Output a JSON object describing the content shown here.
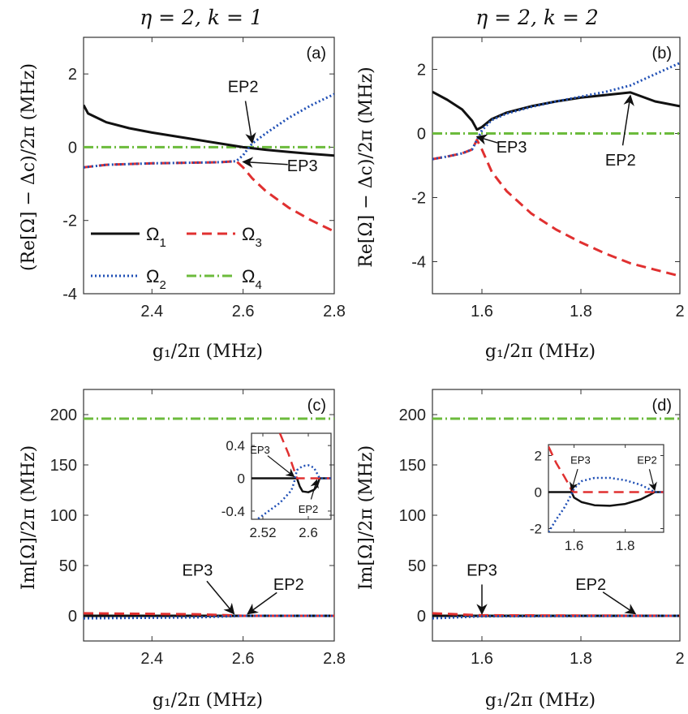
{
  "colors": {
    "omega1": "#111111",
    "omega2": "#1f4fb5",
    "omega3": "#e03030",
    "omega4": "#6cbb3c"
  },
  "legend": {
    "o1": "Ω",
    "o1s": "1",
    "o2": "Ω",
    "o2s": "2",
    "o3": "Ω",
    "o3s": "3",
    "o4": "Ω",
    "o4s": "4"
  },
  "chart_data": [
    {
      "id": "a",
      "type": "line",
      "panel_label": "(a)",
      "title": "η = 2, k = 1",
      "xlabel": "g₁/2π (MHz)",
      "ylabel": "(Re[Ω] − Δc)/2π (MHz)",
      "xlim": [
        2.25,
        2.8
      ],
      "ylim": [
        -4,
        3
      ],
      "xticks": [
        2.4,
        2.6,
        2.8
      ],
      "xticklabels": [
        "2.4",
        "2.6",
        "2.8"
      ],
      "yticks": [
        -4,
        -2,
        0,
        2
      ],
      "yticklabels": [
        "-4",
        "-2",
        "0",
        "2"
      ],
      "series": [
        {
          "name": "Ω1",
          "color_key": "omega1",
          "x": [
            2.25,
            2.26,
            2.3,
            2.35,
            2.4,
            2.45,
            2.5,
            2.55,
            2.6,
            2.65,
            2.7,
            2.75,
            2.8
          ],
          "y": [
            1.15,
            0.92,
            0.68,
            0.52,
            0.4,
            0.3,
            0.2,
            0.1,
            0.0,
            -0.07,
            -0.13,
            -0.18,
            -0.23
          ]
        },
        {
          "name": "Ω2",
          "color_key": "omega2",
          "x": [
            2.25,
            2.3,
            2.4,
            2.5,
            2.55,
            2.585,
            2.6,
            2.61,
            2.62,
            2.65,
            2.7,
            2.75,
            2.8
          ],
          "y": [
            -0.55,
            -0.48,
            -0.44,
            -0.42,
            -0.41,
            -0.38,
            -0.22,
            -0.05,
            0.1,
            0.38,
            0.8,
            1.15,
            1.45
          ]
        },
        {
          "name": "Ω3",
          "color_key": "omega3",
          "x": [
            2.25,
            2.3,
            2.4,
            2.5,
            2.55,
            2.585,
            2.6,
            2.62,
            2.65,
            2.7,
            2.75,
            2.8
          ],
          "y": [
            -0.55,
            -0.48,
            -0.44,
            -0.42,
            -0.41,
            -0.38,
            -0.55,
            -0.85,
            -1.2,
            -1.65,
            -2.0,
            -2.3
          ]
        },
        {
          "name": "Ω4",
          "color_key": "omega4",
          "x": [
            2.25,
            2.8
          ],
          "y": [
            0.0,
            0.0
          ]
        }
      ],
      "annotations": [
        {
          "text": "EP2",
          "tx": 2.6,
          "ty": 1.5,
          "ax": 2.62,
          "ay": 0.12
        },
        {
          "text": "EP3",
          "tx": 2.73,
          "ty": -0.65,
          "ax": 2.6,
          "ay": -0.4
        }
      ]
    },
    {
      "id": "b",
      "type": "line",
      "panel_label": "(b)",
      "title": "η = 2, k = 2",
      "xlabel": "g₁/2π (MHz)",
      "ylabel": "Re[Ω] − Δc)/2π (MHz)",
      "xlim": [
        1.5,
        2.0
      ],
      "ylim": [
        -5,
        3
      ],
      "xticks": [
        1.6,
        1.8,
        2.0
      ],
      "xticklabels": [
        "1.6",
        "1.8",
        "2"
      ],
      "yticks": [
        -4,
        -2,
        0,
        2
      ],
      "yticklabels": [
        "-4",
        "-2",
        "0",
        "2"
      ],
      "series": [
        {
          "name": "Ω1",
          "color_key": "omega1",
          "x": [
            1.5,
            1.53,
            1.56,
            1.58,
            1.59,
            1.6,
            1.62,
            1.65,
            1.7,
            1.75,
            1.8,
            1.85,
            1.9,
            1.95,
            2.0
          ],
          "y": [
            1.3,
            1.05,
            0.75,
            0.4,
            0.12,
            0.2,
            0.45,
            0.65,
            0.85,
            1.0,
            1.12,
            1.2,
            1.28,
            1.0,
            0.85
          ]
        },
        {
          "name": "Ω2",
          "color_key": "omega2",
          "x": [
            1.5,
            1.53,
            1.56,
            1.58,
            1.59,
            1.6,
            1.62,
            1.65,
            1.7,
            1.75,
            1.8,
            1.85,
            1.9,
            1.95,
            2.0
          ],
          "y": [
            -0.8,
            -0.72,
            -0.62,
            -0.5,
            -0.2,
            0.1,
            0.42,
            0.62,
            0.83,
            1.0,
            1.15,
            1.3,
            1.5,
            1.85,
            2.2
          ]
        },
        {
          "name": "Ω3",
          "color_key": "omega3",
          "x": [
            1.5,
            1.53,
            1.56,
            1.58,
            1.59,
            1.6,
            1.62,
            1.65,
            1.7,
            1.75,
            1.8,
            1.85,
            1.9,
            1.95,
            2.0
          ],
          "y": [
            -0.8,
            -0.72,
            -0.62,
            -0.5,
            -0.2,
            -0.5,
            -1.2,
            -1.8,
            -2.5,
            -3.0,
            -3.4,
            -3.75,
            -4.05,
            -4.25,
            -4.45
          ]
        },
        {
          "name": "Ω4",
          "color_key": "omega4",
          "x": [
            1.5,
            2.0
          ],
          "y": [
            0.0,
            0.0
          ]
        }
      ],
      "annotations": [
        {
          "text": "EP3",
          "tx": 1.66,
          "ty": -0.6,
          "ax": 1.59,
          "ay": -0.1
        },
        {
          "text": "EP2",
          "tx": 1.88,
          "ty": -1.0,
          "ax": 1.9,
          "ay": 1.18
        }
      ]
    },
    {
      "id": "c",
      "type": "line",
      "panel_label": "(c)",
      "xlabel": "g₁/2π (MHz)",
      "ylabel": "Im[Ω]/2π (MHz)",
      "xlim": [
        2.25,
        2.8
      ],
      "ylim": [
        -25,
        225
      ],
      "xticks": [
        2.4,
        2.6,
        2.8
      ],
      "xticklabels": [
        "2.4",
        "2.6",
        "2.8"
      ],
      "yticks": [
        0,
        50,
        100,
        150,
        200
      ],
      "yticklabels": [
        "0",
        "50",
        "100",
        "150",
        "200"
      ],
      "series": [
        {
          "name": "Ω1",
          "color_key": "omega1",
          "x": [
            2.25,
            2.8
          ],
          "y": [
            0.0,
            0.0
          ]
        },
        {
          "name": "Ω2",
          "color_key": "omega2",
          "x": [
            2.25,
            2.5,
            2.6,
            2.8
          ],
          "y": [
            -2.5,
            -1.5,
            0.0,
            0.0
          ]
        },
        {
          "name": "Ω3",
          "color_key": "omega3",
          "x": [
            2.25,
            2.5,
            2.6,
            2.8
          ],
          "y": [
            2.5,
            1.5,
            0.0,
            0.0
          ]
        },
        {
          "name": "Ω4",
          "color_key": "omega4",
          "x": [
            2.25,
            2.8
          ],
          "y": [
            196,
            196
          ]
        }
      ],
      "annotations": [
        {
          "text": "EP3",
          "tx": 2.5,
          "ty": 40,
          "ax": 2.58,
          "ay": 2
        },
        {
          "text": "EP2",
          "tx": 2.7,
          "ty": 26,
          "ax": 2.61,
          "ay": 2
        }
      ],
      "inset": {
        "xlim": [
          2.5,
          2.64
        ],
        "ylim": [
          -0.5,
          0.55
        ],
        "xticks": [
          2.52,
          2.6
        ],
        "xticklabels": [
          "2.52",
          "2.6"
        ],
        "yticks": [
          -0.4,
          0,
          0.4
        ],
        "yticklabels": [
          "-0.4",
          "0",
          "0.4"
        ],
        "series": [
          {
            "name": "Ω1",
            "color_key": "omega1",
            "x": [
              2.5,
              2.58,
              2.585,
              2.59,
              2.6,
              2.61,
              2.615,
              2.62,
              2.64
            ],
            "y": [
              0.0,
              0.0,
              -0.1,
              -0.16,
              -0.17,
              -0.14,
              -0.1,
              0.0,
              0.0
            ]
          },
          {
            "name": "Ω2",
            "color_key": "omega2",
            "x": [
              2.5,
              2.52,
              2.55,
              2.57,
              2.575,
              2.58,
              2.59,
              2.6,
              2.61,
              2.62,
              2.64
            ],
            "y": [
              -0.55,
              -0.45,
              -0.3,
              -0.15,
              -0.05,
              0.1,
              0.15,
              0.16,
              0.13,
              0.0,
              0.0
            ]
          },
          {
            "name": "Ω3",
            "color_key": "omega3",
            "x": [
              2.55,
              2.565,
              2.575,
              2.58,
              2.6,
              2.64
            ],
            "y": [
              0.55,
              0.3,
              0.1,
              0.0,
              0.0,
              0.0
            ]
          }
        ],
        "annotations": [
          {
            "text": "EP3",
            "tx": 2.515,
            "ty": 0.3,
            "ax": 2.575,
            "ay": 0.02
          },
          {
            "text": "EP2",
            "tx": 2.6,
            "ty": -0.42,
            "ax": 2.615,
            "ay": -0.02
          }
        ]
      }
    },
    {
      "id": "d",
      "type": "line",
      "panel_label": "(d)",
      "xlabel": "g₁/2π (MHz)",
      "ylabel": "Im[Ω]/2π (MHz)",
      "xlim": [
        1.5,
        2.0
      ],
      "ylim": [
        -25,
        225
      ],
      "xticks": [
        1.6,
        1.8,
        2.0
      ],
      "xticklabels": [
        "1.6",
        "1.8",
        "2"
      ],
      "yticks": [
        0,
        50,
        100,
        150,
        200
      ],
      "yticklabels": [
        "0",
        "50",
        "100",
        "150",
        "200"
      ],
      "series": [
        {
          "name": "Ω1",
          "color_key": "omega1",
          "x": [
            1.5,
            2.0
          ],
          "y": [
            0.0,
            0.0
          ]
        },
        {
          "name": "Ω2",
          "color_key": "omega2",
          "x": [
            1.5,
            1.6,
            2.0
          ],
          "y": [
            -2.5,
            -0.5,
            0.0
          ]
        },
        {
          "name": "Ω3",
          "color_key": "omega3",
          "x": [
            1.5,
            1.6,
            2.0
          ],
          "y": [
            2.5,
            0.5,
            0.0
          ]
        },
        {
          "name": "Ω4",
          "color_key": "omega4",
          "x": [
            1.5,
            2.0
          ],
          "y": [
            196,
            196
          ]
        }
      ],
      "annotations": [
        {
          "text": "EP3",
          "tx": 1.6,
          "ty": 40,
          "ax": 1.6,
          "ay": 2
        },
        {
          "text": "EP2",
          "tx": 1.82,
          "ty": 26,
          "ax": 1.91,
          "ay": 2
        }
      ],
      "inset": {
        "xlim": [
          1.5,
          1.95
        ],
        "ylim": [
          -2.2,
          2.6
        ],
        "xticks": [
          1.6,
          1.8
        ],
        "xticklabels": [
          "1.6",
          "1.8"
        ],
        "yticks": [
          -2,
          0,
          2
        ],
        "yticklabels": [
          "-2",
          "0",
          "2"
        ],
        "series": [
          {
            "name": "Ω1",
            "color_key": "omega1",
            "x": [
              1.5,
              1.59,
              1.6,
              1.63,
              1.68,
              1.74,
              1.8,
              1.86,
              1.9,
              1.915,
              1.95
            ],
            "y": [
              0.0,
              0.0,
              -0.3,
              -0.55,
              -0.72,
              -0.75,
              -0.65,
              -0.4,
              -0.12,
              0.0,
              0.0
            ]
          },
          {
            "name": "Ω2",
            "color_key": "omega2",
            "x": [
              1.5,
              1.53,
              1.56,
              1.58,
              1.59,
              1.6,
              1.63,
              1.68,
              1.74,
              1.8,
              1.86,
              1.9,
              1.915,
              1.95
            ],
            "y": [
              -2.2,
              -1.5,
              -0.9,
              -0.4,
              -0.1,
              0.2,
              0.6,
              0.78,
              0.78,
              0.65,
              0.4,
              0.12,
              0.0,
              0.0
            ]
          },
          {
            "name": "Ω3",
            "color_key": "omega3",
            "x": [
              1.5,
              1.53,
              1.56,
              1.58,
              1.59,
              1.6,
              1.95
            ],
            "y": [
              2.5,
              1.6,
              0.9,
              0.4,
              0.1,
              0.0,
              0.0
            ]
          }
        ],
        "annotations": [
          {
            "text": "EP3",
            "tx": 1.625,
            "ty": 1.55,
            "ax": 1.59,
            "ay": 0.1
          },
          {
            "text": "EP2",
            "tx": 1.885,
            "ty": 1.55,
            "ax": 1.915,
            "ay": 0.1
          }
        ]
      }
    }
  ]
}
